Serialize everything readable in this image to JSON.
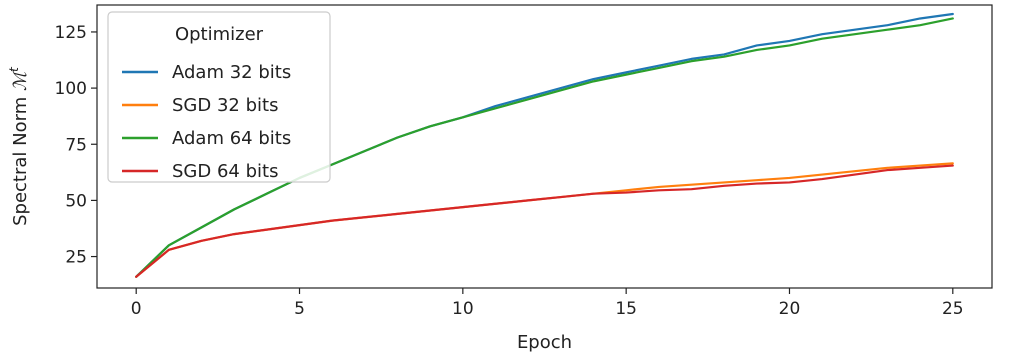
{
  "chart_data": {
    "type": "line",
    "title": "",
    "xlabel": "Epoch",
    "ylabel": "Spectral Norm",
    "ylabel_symbol": "ℳ",
    "ylabel_sup": "t",
    "xlim": [
      -1.2,
      26.2
    ],
    "ylim": [
      11,
      137
    ],
    "xticks": [
      0,
      5,
      10,
      15,
      20,
      25
    ],
    "yticks": [
      25,
      50,
      75,
      100,
      125
    ],
    "grid": false,
    "legend": {
      "title": "Optimizer",
      "placement": "top-left"
    },
    "x": [
      0,
      1,
      2,
      3,
      4,
      5,
      6,
      7,
      8,
      9,
      10,
      11,
      12,
      13,
      14,
      15,
      16,
      17,
      18,
      19,
      20,
      21,
      22,
      23,
      24,
      25
    ],
    "series": [
      {
        "name": "Adam 32 bits",
        "color": "#1f77b4",
        "values": [
          16,
          30,
          38,
          46,
          53,
          60,
          66,
          72,
          78,
          83,
          87,
          92,
          96,
          100,
          104,
          107,
          110,
          113,
          115,
          119,
          121,
          124,
          126,
          128,
          131,
          133
        ]
      },
      {
        "name": "SGD 32 bits",
        "color": "#ff7f0e",
        "values": [
          16,
          28,
          32,
          35,
          37,
          39,
          41,
          42.5,
          44,
          45.5,
          47,
          48.5,
          50,
          51.5,
          53,
          54.5,
          56,
          57,
          58,
          59,
          60,
          61.5,
          63,
          64.5,
          65.5,
          66.5
        ]
      },
      {
        "name": "Adam 64 bits",
        "color": "#2ca02c",
        "values": [
          16,
          30,
          38,
          46,
          53,
          60,
          66,
          72,
          78,
          83,
          87,
          91,
          95,
          99,
          103,
          106,
          109,
          112,
          114,
          117,
          119,
          122,
          124,
          126,
          128,
          131
        ]
      },
      {
        "name": "SGD 64 bits",
        "color": "#d62728",
        "values": [
          16,
          28,
          32,
          35,
          37,
          39,
          41,
          42.5,
          44,
          45.5,
          47,
          48.5,
          50,
          51.5,
          53,
          53.5,
          54.5,
          55,
          56.5,
          57.5,
          58,
          59.5,
          61.5,
          63.5,
          64.5,
          65.5
        ]
      }
    ]
  }
}
